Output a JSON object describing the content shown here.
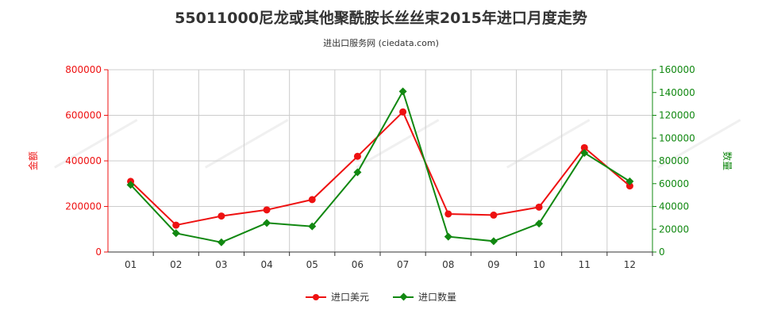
{
  "title": "55011000尼龙或其他聚酰胺长丝丝束2015年进口月度走势",
  "subtitle": "进出口服务网 (ciedata.com)",
  "colors": {
    "left_series": "#ee1111",
    "right_series": "#118811",
    "grid": "#cccccc",
    "axis": "#333333"
  },
  "chart_data": {
    "type": "line",
    "categories": [
      "01",
      "02",
      "03",
      "04",
      "05",
      "06",
      "07",
      "08",
      "09",
      "10",
      "11",
      "12"
    ],
    "left_axis": {
      "label": "金额",
      "range": [
        0,
        800000
      ],
      "ticks": [
        "0",
        "200000",
        "400000",
        "600000",
        "800000"
      ]
    },
    "right_axis": {
      "label": "数量",
      "range": [
        0,
        160000
      ],
      "ticks": [
        "0",
        "20000",
        "40000",
        "60000",
        "80000",
        "100000",
        "120000",
        "140000",
        "160000"
      ]
    },
    "series": [
      {
        "name": "进口美元",
        "axis": "left",
        "marker": "circle",
        "values": [
          310000,
          118000,
          158000,
          185000,
          230000,
          420000,
          615000,
          167000,
          162000,
          197000,
          458000,
          290000
        ]
      },
      {
        "name": "进口数量",
        "axis": "right",
        "marker": "diamond",
        "values": [
          59000,
          16500,
          8500,
          25500,
          22500,
          70000,
          141000,
          13500,
          9500,
          25000,
          87000,
          62000
        ]
      }
    ],
    "grid": true,
    "legend": "bottom-center"
  }
}
